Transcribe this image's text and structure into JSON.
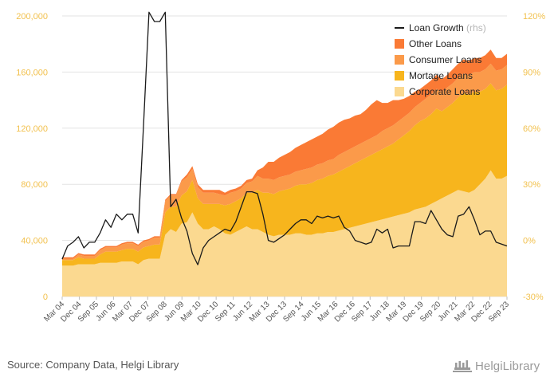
{
  "chart_data": {
    "type": "area",
    "stacked": true,
    "x_labels": [
      "Mar 04",
      "Dec 04",
      "Sep 05",
      "Jun 06",
      "Mar 07",
      "Dec 07",
      "Sep 08",
      "Jun 09",
      "Mar 10",
      "Dec 10",
      "Sep 11",
      "Jun 12",
      "Mar 13",
      "Dec 13",
      "Sep 14",
      "Jun 15",
      "Mar 16",
      "Dec 16",
      "Sep 17",
      "Jun 18",
      "Mar 19",
      "Dec 19",
      "Sep 20",
      "Jun 21",
      "Mar 22",
      "Dec 22",
      "Sep 23"
    ],
    "left_axis": {
      "min": 0,
      "max": 200000,
      "ticks": [
        "0",
        "40,000",
        "80,000",
        "120,000",
        "160,000",
        "200,000"
      ]
    },
    "right_axis": {
      "min": -30,
      "max": 120,
      "ticks": [
        "-30%",
        "0%",
        "30%",
        "60%",
        "90%",
        "120%"
      ]
    },
    "series": [
      {
        "name": "Corporate Loans",
        "color": "#fbd990",
        "values": [
          22000,
          22000,
          22000,
          23000,
          23000,
          23000,
          23000,
          24000,
          24000,
          24000,
          24000,
          25000,
          25000,
          25000,
          23000,
          26000,
          27000,
          27000,
          27000,
          44000,
          48000,
          46000,
          52000,
          53000,
          60000,
          52000,
          48000,
          48000,
          50000,
          48000,
          45000,
          44000,
          46000,
          48000,
          50000,
          48000,
          48000,
          46000,
          44000,
          43000,
          44000,
          44000,
          44000,
          45000,
          45000,
          44000,
          44000,
          45000,
          45000,
          46000,
          46000,
          47000,
          48000,
          49000,
          50000,
          51000,
          52000,
          53000,
          54000,
          55000,
          56000,
          57000,
          58000,
          59000,
          60000,
          62000,
          63000,
          64000,
          66000,
          68000,
          70000,
          72000,
          74000,
          76000,
          75000,
          74000,
          76000,
          80000,
          84000,
          90000,
          84000,
          84000,
          86000
        ]
      },
      {
        "name": "Mortage Loans",
        "color": "#f7b51d",
        "values": [
          4000,
          4000,
          4000,
          5000,
          4000,
          4000,
          4000,
          6000,
          8000,
          8000,
          8000,
          8000,
          9000,
          9000,
          9000,
          9000,
          9000,
          10000,
          10000,
          16000,
          16000,
          18000,
          20000,
          22000,
          23000,
          18000,
          18000,
          18000,
          16000,
          18000,
          20000,
          22000,
          22000,
          22000,
          24000,
          26000,
          28000,
          28000,
          30000,
          30000,
          31000,
          32000,
          33000,
          34000,
          35000,
          36000,
          37000,
          38000,
          39000,
          40000,
          41000,
          42000,
          43000,
          44000,
          45000,
          46000,
          47000,
          48000,
          49000,
          50000,
          51000,
          52000,
          54000,
          56000,
          58000,
          60000,
          62000,
          63000,
          64000,
          66000,
          62000,
          63000,
          64000,
          66000,
          70000,
          70000,
          70000,
          66000,
          64000,
          62000,
          63000,
          64000,
          65000
        ]
      },
      {
        "name": "Consumer Loans",
        "color": "#fb9a4a",
        "values": [
          1000,
          1000,
          1000,
          2000,
          2000,
          2000,
          2000,
          3000,
          3000,
          3000,
          3000,
          4000,
          4000,
          4000,
          4000,
          4000,
          4000,
          5000,
          5000,
          8000,
          8000,
          8000,
          10000,
          10000,
          8000,
          8000,
          8000,
          8000,
          8000,
          7000,
          7000,
          8000,
          7000,
          7000,
          7000,
          8000,
          10000,
          10000,
          10000,
          10000,
          10000,
          10000,
          10000,
          10000,
          10000,
          11000,
          11000,
          11000,
          11000,
          11000,
          11000,
          12000,
          12000,
          12000,
          12000,
          12000,
          12000,
          12000,
          12000,
          13000,
          13000,
          13000,
          13000,
          13000,
          13000,
          13000,
          13000,
          14000,
          14000,
          14000,
          14000,
          14000,
          14000,
          14000,
          14000,
          14000,
          14000,
          14000,
          14000,
          14000,
          14000,
          14000,
          14000
        ]
      },
      {
        "name": "Other Loans",
        "color": "#fa7a35",
        "values": [
          1000,
          1000,
          1000,
          1000,
          1000,
          1000,
          1000,
          1000,
          1000,
          1000,
          1000,
          1000,
          1000,
          1000,
          1000,
          1000,
          1000,
          1000,
          1000,
          1000,
          1000,
          1000,
          1000,
          2000,
          2000,
          2000,
          2000,
          2000,
          2000,
          3000,
          2000,
          2000,
          2000,
          2000,
          2000,
          2000,
          4000,
          8000,
          12000,
          13000,
          14000,
          15000,
          16000,
          17000,
          18000,
          19000,
          20000,
          20000,
          21000,
          22000,
          23000,
          23000,
          23000,
          22000,
          22000,
          21000,
          22000,
          24000,
          25000,
          20000,
          18000,
          18000,
          15000,
          13000,
          12000,
          11000,
          10000,
          10000,
          10000,
          10000,
          9000,
          9000,
          10000,
          10000,
          10000,
          10000,
          10000,
          10000,
          10000,
          10000,
          9000,
          8000,
          8000
        ]
      },
      {
        "name": "Loan Growth",
        "color": "#1a1a1a",
        "axis": "right",
        "unit": "%",
        "values": [
          -10,
          -3,
          -1,
          2,
          -4,
          -1,
          -1,
          4,
          11,
          7,
          14,
          11,
          14,
          14,
          4,
          62,
          122,
          117,
          117,
          122,
          18,
          22,
          12,
          5,
          -7,
          -13,
          -4,
          0,
          2,
          4,
          6,
          5,
          10,
          18,
          26,
          26,
          25,
          14,
          0,
          -1,
          1,
          3,
          6,
          9,
          11,
          11,
          9,
          13,
          12,
          13,
          12,
          13,
          7,
          5,
          0,
          -1,
          -2,
          -1,
          6,
          4,
          6,
          -4,
          -3,
          -3,
          -3,
          10,
          10,
          9,
          16,
          11,
          6,
          3,
          2,
          13,
          14,
          18,
          11,
          3,
          5,
          5,
          -1,
          -2,
          -3
        ]
      }
    ],
    "legend": [
      {
        "name": "Loan Growth",
        "note": "(rhs)",
        "type": "line",
        "color": "#1a1a1a"
      },
      {
        "name": "Other Loans",
        "type": "box",
        "color": "#fa7a35"
      },
      {
        "name": "Consumer Loans",
        "type": "box",
        "color": "#fb9a4a"
      },
      {
        "name": "Mortage Loans",
        "type": "box",
        "color": "#f7b51d"
      },
      {
        "name": "Corporate Loans",
        "type": "box",
        "color": "#fbd990"
      }
    ],
    "legend_position": "top-right",
    "grid": true
  },
  "footer": {
    "source": "Source: Company Data, Helgi Library",
    "brand": "HelgiLibrary"
  }
}
